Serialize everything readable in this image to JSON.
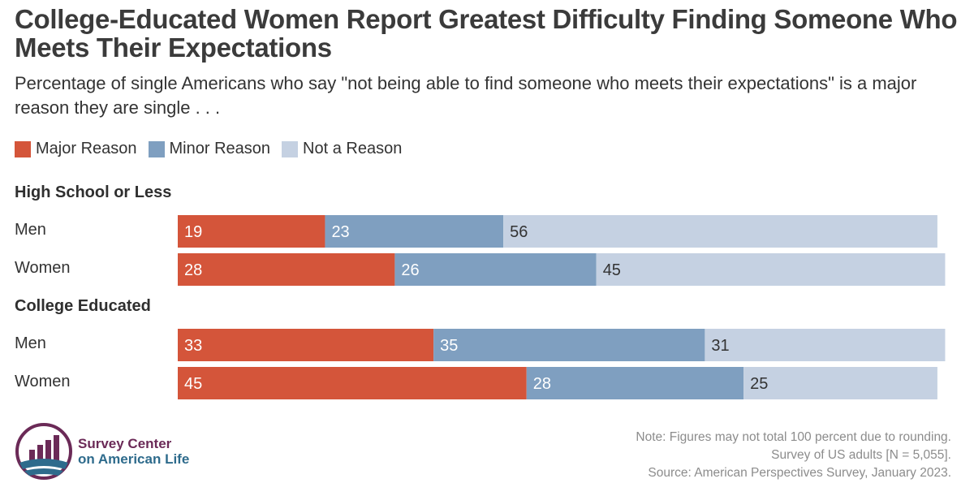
{
  "chart_data": {
    "type": "bar",
    "orientation": "horizontal",
    "stacked": true,
    "title": "College-Educated Women Report Greatest Difficulty Finding Someone Who Meets Their Expectations",
    "subtitle": "Percentage of single Americans who say \"not being able to find someone who meets their expectations\" is a major reason they are single . . .",
    "xlim": [
      0,
      100
    ],
    "legend_position": "top-left",
    "series": [
      {
        "name": "Major Reason",
        "color": "#d4553a"
      },
      {
        "name": "Minor Reason",
        "color": "#7f9fc0"
      },
      {
        "name": "Not a Reason",
        "color": "#c5d1e2"
      }
    ],
    "groups": [
      {
        "label": "High School or Less",
        "rows": [
          {
            "label": "Men",
            "values": [
              19,
              23,
              56
            ]
          },
          {
            "label": "Women",
            "values": [
              28,
              26,
              45
            ]
          }
        ]
      },
      {
        "label": "College Educated",
        "rows": [
          {
            "label": "Men",
            "values": [
              33,
              35,
              31
            ]
          },
          {
            "label": "Women",
            "values": [
              45,
              28,
              25
            ]
          }
        ]
      }
    ]
  },
  "footnotes": [
    "Note: Figures may not total 100 percent due to rounding.",
    "Survey of US adults [N = 5,055].",
    "Source: American Perspectives Survey, January 2023."
  ],
  "logo": {
    "line1": "Survey Center",
    "line2": "on American Life",
    "icon": "bar-chart-globe-logo"
  }
}
